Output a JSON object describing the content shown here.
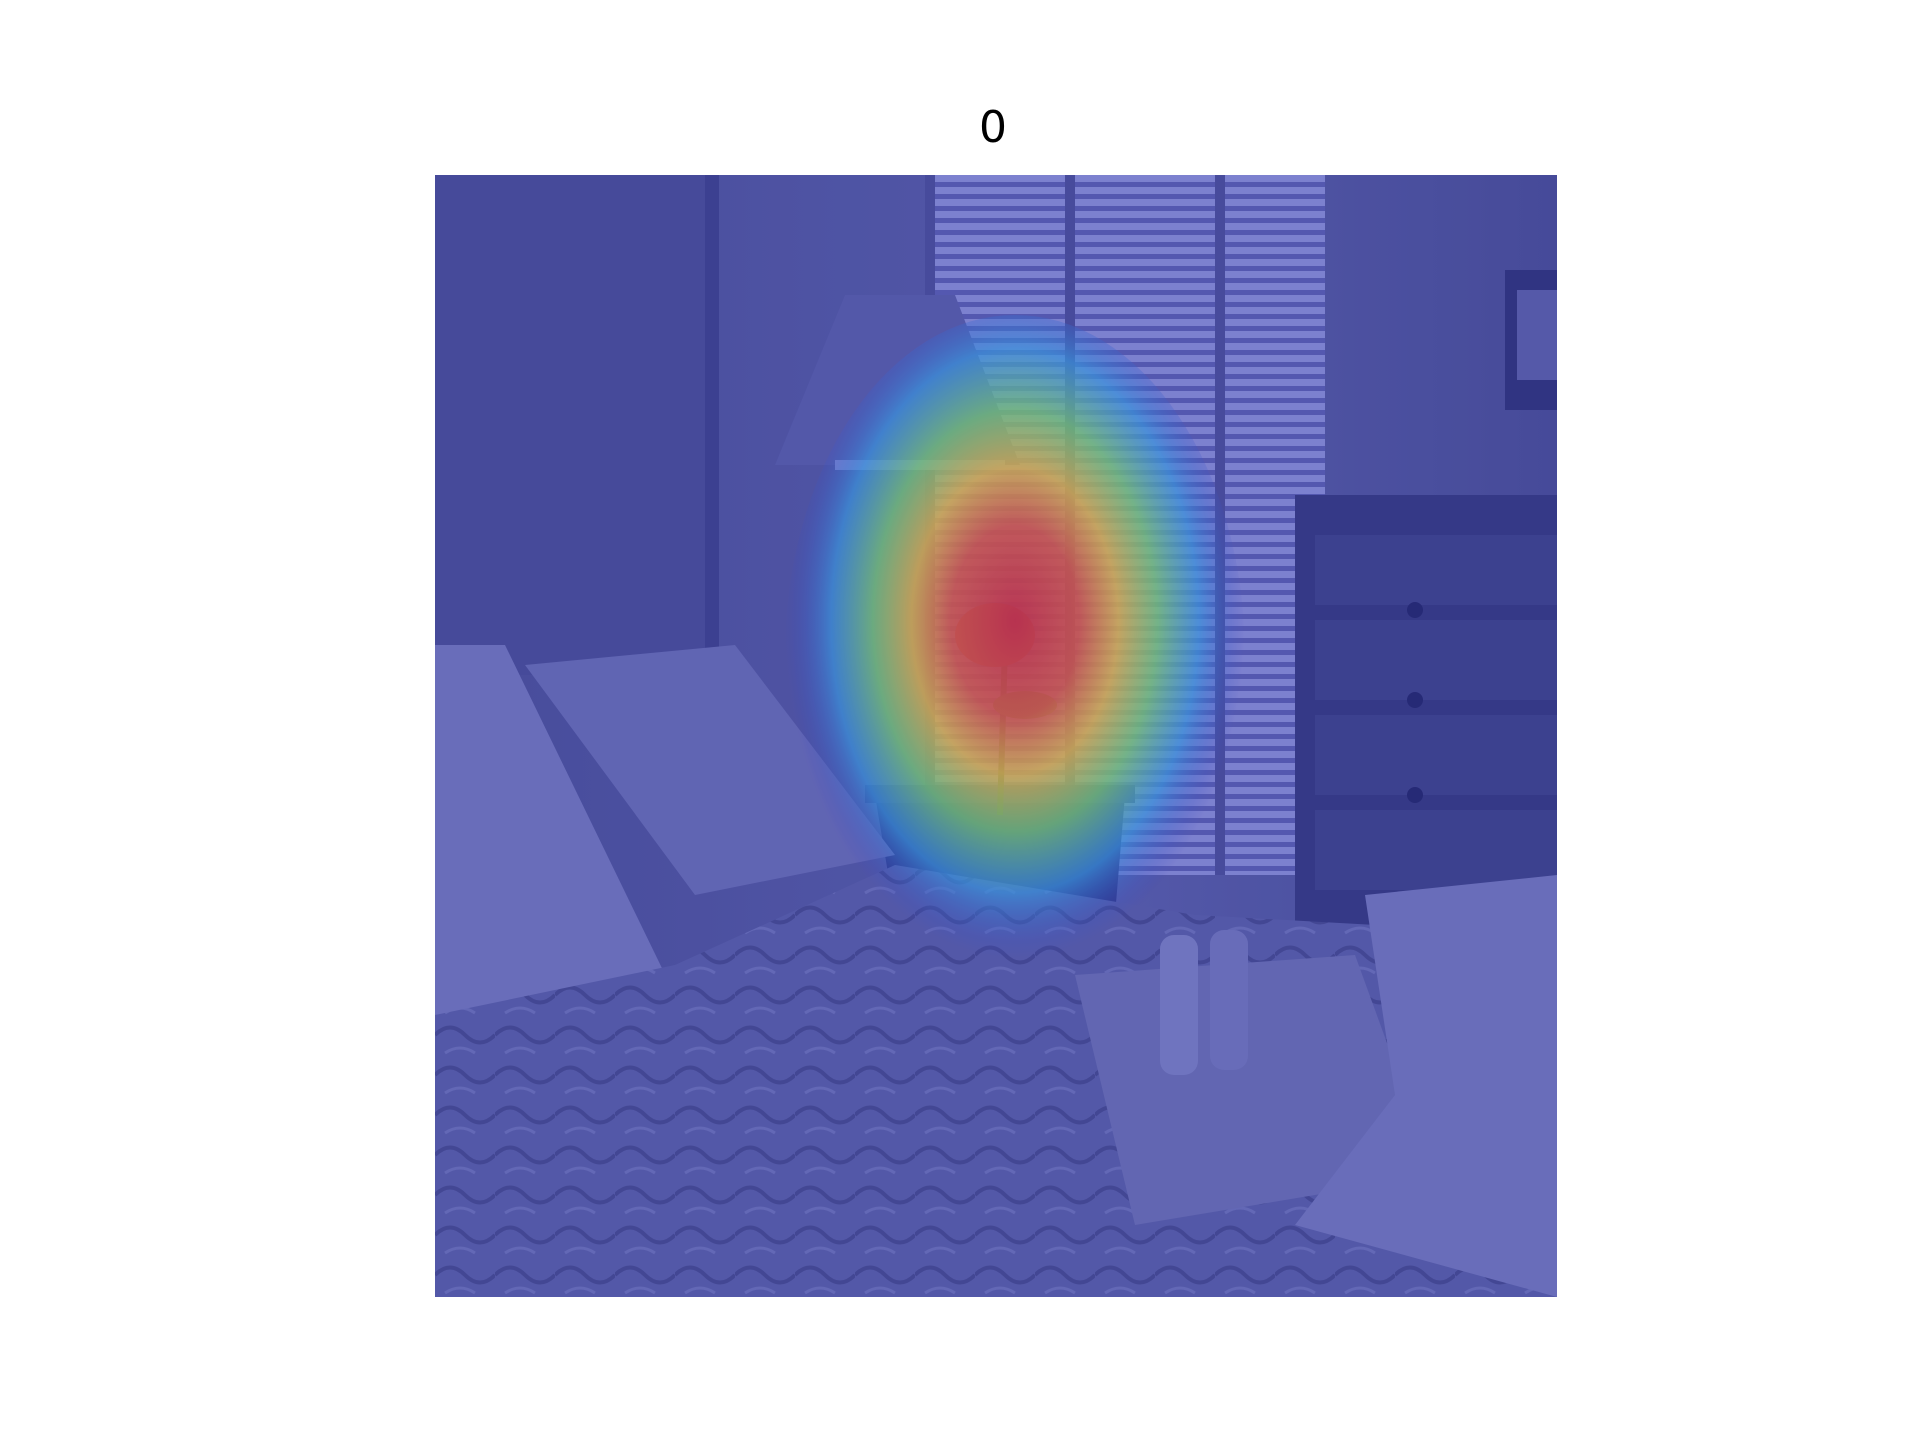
{
  "figure": {
    "title": "0"
  },
  "image": {
    "subject": "bedroom-scene-with-attention-heatmap",
    "colors": {
      "overlay_base": "#4b4f9a",
      "hot_core": "#e0303a",
      "warm": "#f2c23a",
      "mid": "#7fdc6a",
      "cool": "#3aa6e6",
      "outer": "#3a44c8"
    },
    "heatmap": {
      "peak_region": "bedside-lamp-and-plant",
      "colormap": "jet"
    }
  }
}
